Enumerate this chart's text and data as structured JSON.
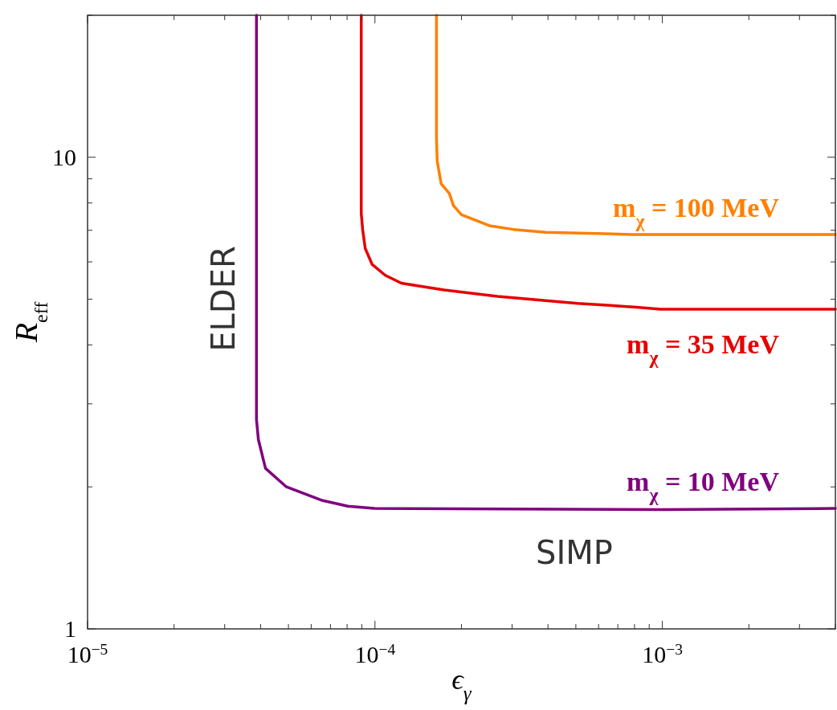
{
  "chart_data": {
    "type": "line",
    "xlabel": "ϵ$_{γ}$",
    "ylabel": "R$_{eff}$",
    "log": "xy",
    "xlim": [
      1e-05,
      0.004
    ],
    "ylim": [
      1,
      20
    ],
    "xticks": [
      {
        "value": 1e-05,
        "label": "10$^{−5}$"
      },
      {
        "value": 2e-05,
        "label": null
      },
      {
        "value": 3e-05,
        "label": null
      },
      {
        "value": 4e-05,
        "label": null
      },
      {
        "value": 5e-05,
        "label": null
      },
      {
        "value": 6e-05,
        "label": null
      },
      {
        "value": 7e-05,
        "label": null
      },
      {
        "value": 8e-05,
        "label": null
      },
      {
        "value": 9e-05,
        "label": null
      },
      {
        "value": 0.0001,
        "label": "10$^{−4}$"
      },
      {
        "value": 0.0002,
        "label": null
      },
      {
        "value": 0.0003,
        "label": null
      },
      {
        "value": 0.0004,
        "label": null
      },
      {
        "value": 0.0005,
        "label": null
      },
      {
        "value": 0.0006,
        "label": null
      },
      {
        "value": 0.0007,
        "label": null
      },
      {
        "value": 0.0008,
        "label": null
      },
      {
        "value": 0.0009,
        "label": null
      },
      {
        "value": 0.001,
        "label": "10$^{−3}$"
      },
      {
        "value": 0.002,
        "label": null
      },
      {
        "value": 0.003,
        "label": null
      },
      {
        "value": 0.004,
        "label": null
      }
    ],
    "yticks": [
      1,
      {
        "value": 2,
        "label": null
      },
      {
        "value": 3,
        "label": null
      },
      {
        "value": 4,
        "label": null
      },
      {
        "value": 5,
        "label": null
      },
      {
        "value": 6,
        "label": null
      },
      {
        "value": 7,
        "label": null
      },
      {
        "value": 8,
        "label": null
      },
      {
        "value": 9,
        "label": null
      },
      10,
      {
        "value": 20,
        "label": null
      }
    ],
    "grid": false,
    "legend": false,
    "marker": "none",
    "line_style": "solid",
    "series": [
      {
        "name": "m$_{χ}$ = 100 MeV",
        "color": "#ff7f00",
        "x": [
          0.0001637,
          0.0001637,
          0.0001647,
          0.00017,
          0.0001815,
          0.0001875,
          0.0002,
          0.00025,
          0.000303,
          0.000393,
          0.000779,
          0.004
        ],
        "values": [
          20,
          10.96,
          9.8,
          8.78,
          8.38,
          7.9,
          7.55,
          7.16,
          7.03,
          6.93,
          6.86,
          6.86
        ]
      },
      {
        "name": "m$_{χ}$ = 35 MeV",
        "color": "#e60000",
        "x": [
          8.96e-05,
          8.96e-05,
          9.06e-05,
          9.25e-05,
          9.77e-05,
          0.0001086,
          0.0001234,
          0.0001404,
          0.000174,
          0.000267,
          0.000507,
          0.000812,
          0.000985,
          0.004
        ],
        "values": [
          20,
          7.6,
          7.03,
          6.41,
          5.93,
          5.62,
          5.41,
          5.34,
          5.23,
          5.07,
          4.9,
          4.81,
          4.76,
          4.76
        ]
      },
      {
        "name": "m$_{χ}$ = 10 MeV",
        "color": "#800080",
        "x": [
          3.87e-05,
          3.87e-05,
          3.93e-05,
          4.16e-05,
          4.92e-05,
          6.5e-05,
          8.05e-05,
          9.97e-05,
          0.001,
          0.004
        ],
        "values": [
          20,
          2.78,
          2.52,
          2.19,
          2,
          1.875,
          1.82,
          1.8,
          1.79,
          1.8
        ]
      }
    ],
    "annotations": [
      "ELDER",
      "SIMP"
    ]
  }
}
